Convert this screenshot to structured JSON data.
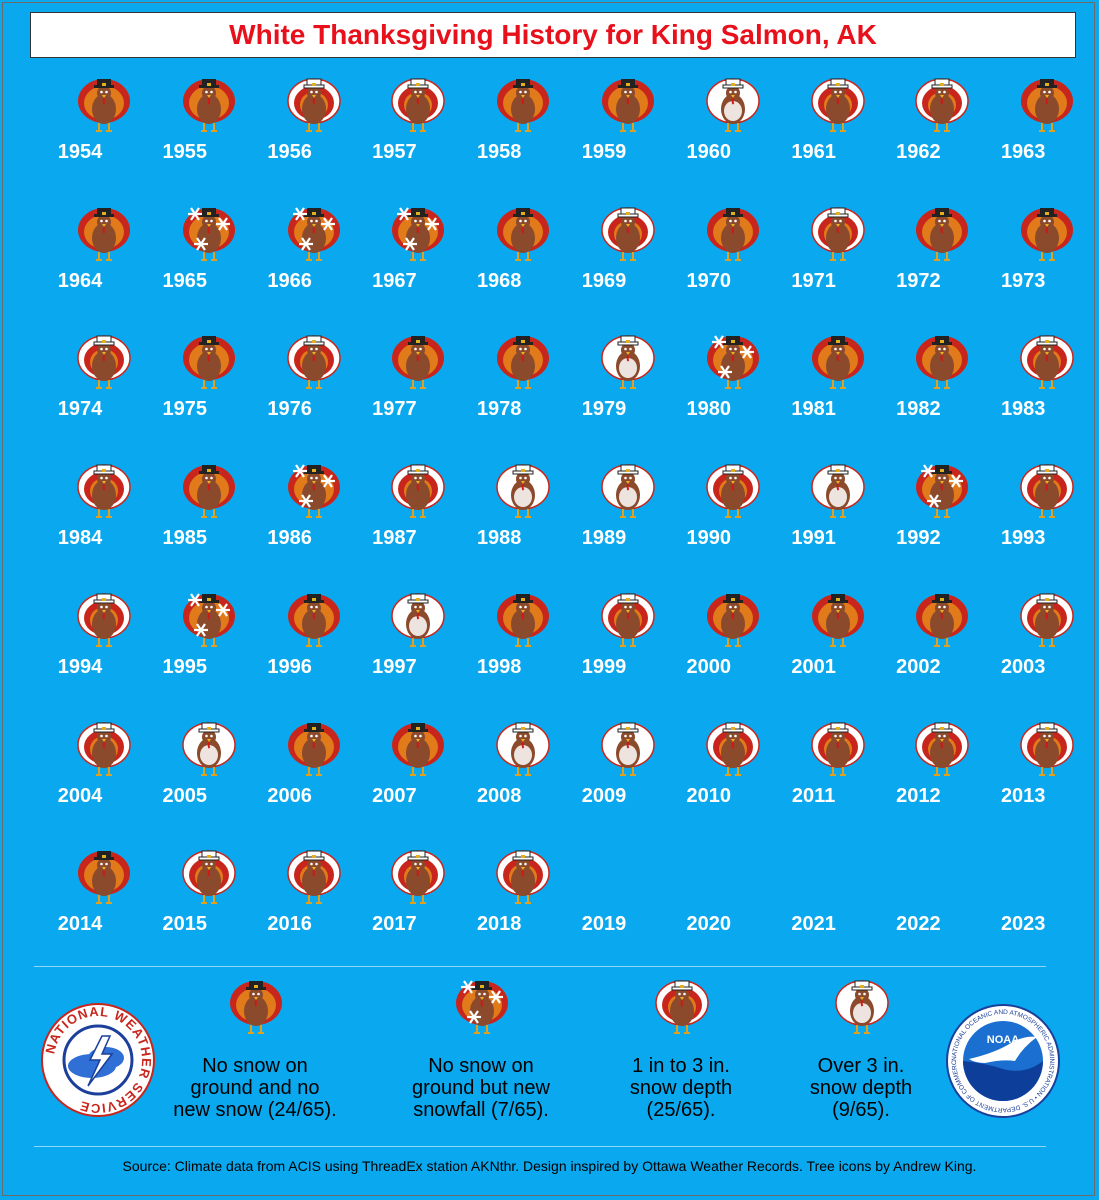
{
  "title": "White Thanksgiving History for King Salmon, AK",
  "chart_data": {
    "type": "table",
    "title": "White Thanksgiving History for King Salmon, AK",
    "categories": [
      {
        "key": "none",
        "label": "No snow on ground and no new snow (24/65)."
      },
      {
        "key": "newsnow",
        "label": "No snow on ground but new snowfall (7/65)."
      },
      {
        "key": "light",
        "label": "1 in to 3 in. snow depth (25/65)."
      },
      {
        "key": "heavy",
        "label": "Over 3 in. snow depth (9/65)."
      }
    ],
    "years": [
      {
        "year": "1954",
        "cat": "none"
      },
      {
        "year": "1955",
        "cat": "none"
      },
      {
        "year": "1956",
        "cat": "light"
      },
      {
        "year": "1957",
        "cat": "light"
      },
      {
        "year": "1958",
        "cat": "none"
      },
      {
        "year": "1959",
        "cat": "none"
      },
      {
        "year": "1960",
        "cat": "heavy"
      },
      {
        "year": "1961",
        "cat": "light"
      },
      {
        "year": "1962",
        "cat": "light"
      },
      {
        "year": "1963",
        "cat": "none"
      },
      {
        "year": "1964",
        "cat": "none"
      },
      {
        "year": "1965",
        "cat": "newsnow"
      },
      {
        "year": "1966",
        "cat": "newsnow"
      },
      {
        "year": "1967",
        "cat": "newsnow"
      },
      {
        "year": "1968",
        "cat": "none"
      },
      {
        "year": "1969",
        "cat": "light"
      },
      {
        "year": "1970",
        "cat": "none"
      },
      {
        "year": "1971",
        "cat": "light"
      },
      {
        "year": "1972",
        "cat": "none"
      },
      {
        "year": "1973",
        "cat": "none"
      },
      {
        "year": "1974",
        "cat": "light"
      },
      {
        "year": "1975",
        "cat": "none"
      },
      {
        "year": "1976",
        "cat": "light"
      },
      {
        "year": "1977",
        "cat": "none"
      },
      {
        "year": "1978",
        "cat": "none"
      },
      {
        "year": "1979",
        "cat": "heavy"
      },
      {
        "year": "1980",
        "cat": "newsnow"
      },
      {
        "year": "1981",
        "cat": "none"
      },
      {
        "year": "1982",
        "cat": "none"
      },
      {
        "year": "1983",
        "cat": "light"
      },
      {
        "year": "1984",
        "cat": "light"
      },
      {
        "year": "1985",
        "cat": "none"
      },
      {
        "year": "1986",
        "cat": "newsnow"
      },
      {
        "year": "1987",
        "cat": "light"
      },
      {
        "year": "1988",
        "cat": "heavy"
      },
      {
        "year": "1989",
        "cat": "heavy"
      },
      {
        "year": "1990",
        "cat": "light"
      },
      {
        "year": "1991",
        "cat": "heavy"
      },
      {
        "year": "1992",
        "cat": "newsnow"
      },
      {
        "year": "1993",
        "cat": "light"
      },
      {
        "year": "1994",
        "cat": "light"
      },
      {
        "year": "1995",
        "cat": "newsnow"
      },
      {
        "year": "1996",
        "cat": "none"
      },
      {
        "year": "1997",
        "cat": "heavy"
      },
      {
        "year": "1998",
        "cat": "none"
      },
      {
        "year": "1999",
        "cat": "light"
      },
      {
        "year": "2000",
        "cat": "none"
      },
      {
        "year": "2001",
        "cat": "none"
      },
      {
        "year": "2002",
        "cat": "none"
      },
      {
        "year": "2003",
        "cat": "light"
      },
      {
        "year": "2004",
        "cat": "light"
      },
      {
        "year": "2005",
        "cat": "heavy"
      },
      {
        "year": "2006",
        "cat": "none"
      },
      {
        "year": "2007",
        "cat": "none"
      },
      {
        "year": "2008",
        "cat": "heavy"
      },
      {
        "year": "2009",
        "cat": "heavy"
      },
      {
        "year": "2010",
        "cat": "light"
      },
      {
        "year": "2011",
        "cat": "light"
      },
      {
        "year": "2012",
        "cat": "light"
      },
      {
        "year": "2013",
        "cat": "light"
      },
      {
        "year": "2014",
        "cat": "none"
      },
      {
        "year": "2015",
        "cat": "light"
      },
      {
        "year": "2016",
        "cat": "light"
      },
      {
        "year": "2017",
        "cat": "light"
      },
      {
        "year": "2018",
        "cat": "light"
      },
      {
        "year": "2019",
        "cat": ""
      },
      {
        "year": "2020",
        "cat": ""
      },
      {
        "year": "2021",
        "cat": ""
      },
      {
        "year": "2022",
        "cat": ""
      },
      {
        "year": "2023",
        "cat": ""
      }
    ]
  },
  "legend": {
    "none": [
      "No snow on",
      "ground and no",
      "new snow (24/65)."
    ],
    "newsnow": [
      "No snow on",
      "ground but new",
      "snowfall (7/65)."
    ],
    "light": [
      "1 in to 3 in.",
      "snow depth",
      "(25/65)."
    ],
    "heavy": [
      "Over 3 in.",
      "snow depth",
      "(9/65)."
    ]
  },
  "logos": {
    "nws_text": "NATIONAL WEATHER SERVICE",
    "noaa_text": "NOAA",
    "noaa_ring_text": "NATIONAL OCEANIC AND ATMOSPHERIC ADMINISTRATION • U.S. DEPARTMENT OF COMMERCE"
  },
  "source": "Source: Climate data from ACIS using ThreadEx station AKNthr. Design inspired by Ottawa Weather Records. Tree icons by Andrew King.",
  "colors": {
    "background": "#0aa8ee",
    "title": "#e8101a",
    "turkey_body": "#8b4a2b",
    "feather_red": "#c8261c",
    "feather_orange": "#e07a1a",
    "snow": "#ffffff"
  }
}
